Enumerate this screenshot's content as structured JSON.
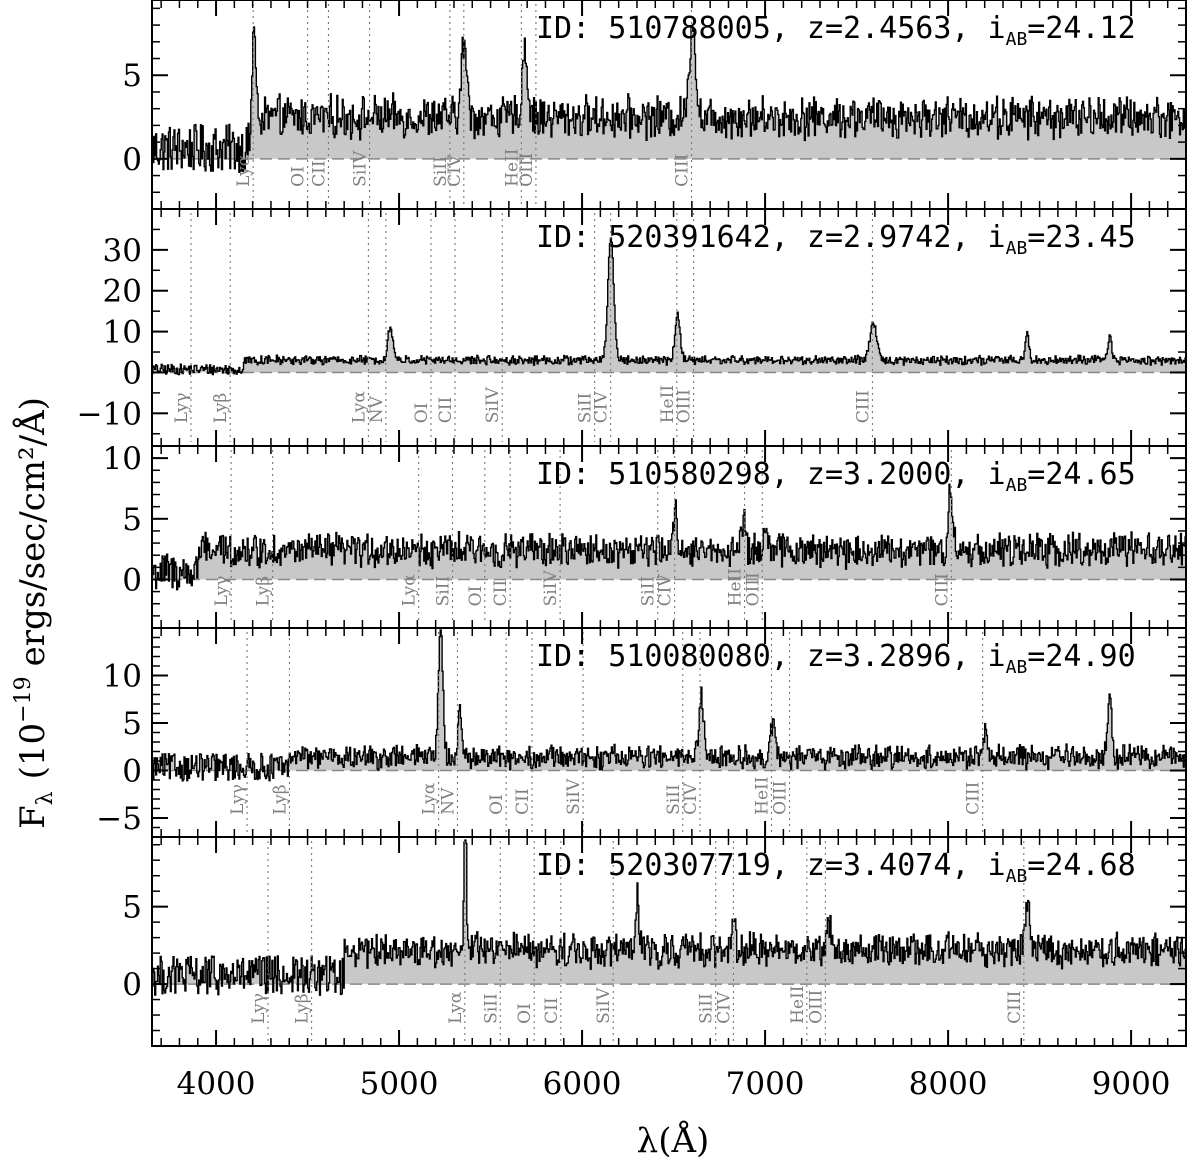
{
  "chart_data": {
    "type": "line",
    "xlabel": "λ(Å)",
    "ylabel_prefix": "F",
    "ylabel_sub": "λ",
    "ylabel_main": "(10",
    "ylabel_exp": "−19",
    "ylabel_units": "ergs/sec/cm²/Å)",
    "xlim": [
      3650,
      9300
    ],
    "x_ticks": [
      4000,
      5000,
      6000,
      7000,
      8000,
      9000
    ],
    "x_tick_labels": [
      "4000",
      "5000",
      "6000",
      "7000",
      "8000",
      "9000"
    ],
    "grid": false,
    "fill_color": "#c8c8c8",
    "line_color": "#000000",
    "label_color": "#808080",
    "panels": [
      {
        "id_label": "ID: 510788005, z=2.4563, i",
        "mag_sub": "AB",
        "mag_value": "=24.12",
        "redshift": 2.4563,
        "ylim": [
          -3.0,
          9.5
        ],
        "y_ticks": [
          0,
          5
        ],
        "y_tick_labels": [
          "0",
          "5"
        ],
        "baseline": 2.5,
        "noise": 0.9,
        "blue_noise_end": 4200,
        "emission": [
          [
            4203,
            5.5,
            10
          ],
          [
            5353,
            4.5,
            14
          ],
          [
            5685,
            4.2,
            14
          ],
          [
            6601,
            6.0,
            16
          ]
        ],
        "lines": [
          {
            "label": "Lyα",
            "rest": 1216
          },
          {
            "label": "OI",
            "rest": 1302
          },
          {
            "label": "CII",
            "rest": 1335
          },
          {
            "label": "SiIV",
            "rest": 1400
          },
          {
            "label": "SiII",
            "rest": 1527
          },
          {
            "label": "CIV",
            "rest": 1549
          },
          {
            "label": "HeII",
            "rest": 1640
          },
          {
            "label": "OIII",
            "rest": 1663
          },
          {
            "label": "CIII",
            "rest": 1909
          }
        ]
      },
      {
        "id_label": "ID: 520391642, z=2.9742, i",
        "mag_sub": "AB",
        "mag_value": "=23.45",
        "redshift": 2.9742,
        "ylim": [
          -18.0,
          40.0
        ],
        "y_ticks": [
          -10,
          0,
          10,
          20,
          30
        ],
        "y_tick_labels": [
          "−10",
          "0",
          "10",
          "20",
          "30"
        ],
        "baseline": 3.0,
        "noise": 0.8,
        "blue_noise_end": 4150,
        "emission": [
          [
            4950,
            8,
            14
          ],
          [
            6155,
            30,
            16
          ],
          [
            6520,
            11,
            14
          ],
          [
            7590,
            9,
            18
          ],
          [
            8430,
            6,
            10
          ],
          [
            8880,
            6,
            10
          ]
        ],
        "lines": [
          {
            "label": "Lyγ",
            "rest": 972
          },
          {
            "label": "Lyβ",
            "rest": 1026
          },
          {
            "label": "Lyα",
            "rest": 1216
          },
          {
            "label": "NV",
            "rest": 1240
          },
          {
            "label": "OI",
            "rest": 1302
          },
          {
            "label": "CII",
            "rest": 1335
          },
          {
            "label": "SiIV",
            "rest": 1400
          },
          {
            "label": "SiII",
            "rest": 1527
          },
          {
            "label": "CIV",
            "rest": 1549
          },
          {
            "label": "HeII",
            "rest": 1640
          },
          {
            "label": "OIII",
            "rest": 1663
          },
          {
            "label": "CIII",
            "rest": 1909
          }
        ]
      },
      {
        "id_label": "ID: 510580298, z=3.2000, i",
        "mag_sub": "AB",
        "mag_value": "=24.65",
        "redshift": 3.2,
        "ylim": [
          -4.0,
          11.0
        ],
        "y_ticks": [
          0,
          5,
          10
        ],
        "y_tick_labels": [
          "0",
          "5",
          "10"
        ],
        "baseline": 2.4,
        "noise": 1.0,
        "blue_noise_end": 3900,
        "emission": [
          [
            6510,
            3.2,
            10
          ],
          [
            6880,
            2.5,
            12
          ],
          [
            7000,
            2.5,
            10
          ],
          [
            8010,
            5.0,
            12
          ]
        ],
        "lines": [
          {
            "label": "Lyγ",
            "rest": 972
          },
          {
            "label": "Lyβ",
            "rest": 1026
          },
          {
            "label": "Lyα",
            "rest": 1216
          },
          {
            "label": "SiII",
            "rest": 1260
          },
          {
            "label": "OI",
            "rest": 1302
          },
          {
            "label": "CII",
            "rest": 1335
          },
          {
            "label": "SiIV",
            "rest": 1400
          },
          {
            "label": "SiII",
            "rest": 1527
          },
          {
            "label": "CIV",
            "rest": 1549
          },
          {
            "label": "HeII",
            "rest": 1640
          },
          {
            "label": "OIII",
            "rest": 1663
          },
          {
            "label": "CIII",
            "rest": 1909
          }
        ]
      },
      {
        "id_label": "ID: 510080080, z=3.2896, i",
        "mag_sub": "AB",
        "mag_value": "=24.90",
        "redshift": 3.2896,
        "ylim": [
          -7.0,
          15.0
        ],
        "y_ticks": [
          -5,
          0,
          5,
          10
        ],
        "y_tick_labels": [
          "−5",
          "0",
          "5",
          "10"
        ],
        "baseline": 1.4,
        "noise": 0.9,
        "blue_noise_end": 4400,
        "emission": [
          [
            5225,
            14,
            12
          ],
          [
            5330,
            5,
            10
          ],
          [
            6650,
            6,
            14
          ],
          [
            7040,
            3.5,
            12
          ],
          [
            8200,
            2.5,
            10
          ],
          [
            8880,
            7,
            10
          ]
        ],
        "lines": [
          {
            "label": "Lyγ",
            "rest": 972
          },
          {
            "label": "Lyβ",
            "rest": 1026
          },
          {
            "label": "Lyα",
            "rest": 1216
          },
          {
            "label": "NV",
            "rest": 1240
          },
          {
            "label": "OI",
            "rest": 1302
          },
          {
            "label": "CII",
            "rest": 1335
          },
          {
            "label": "SiIV",
            "rest": 1400
          },
          {
            "label": "SiII",
            "rest": 1527
          },
          {
            "label": "CIV",
            "rest": 1549
          },
          {
            "label": "HeII",
            "rest": 1640
          },
          {
            "label": "OIII",
            "rest": 1663
          },
          {
            "label": "CIII",
            "rest": 1909
          }
        ]
      },
      {
        "id_label": "ID: 520307719, z=3.4074, i",
        "mag_sub": "AB",
        "mag_value": "=24.68",
        "redshift": 3.4074,
        "ylim": [
          -4.0,
          9.5
        ],
        "y_ticks": [
          0,
          5
        ],
        "y_tick_labels": [
          "0",
          "5"
        ],
        "baseline": 2.2,
        "noise": 0.8,
        "blue_noise_end": 4700,
        "emission": [
          [
            5360,
            9.5,
            6
          ],
          [
            6300,
            3.5,
            8
          ],
          [
            6830,
            2.5,
            8
          ],
          [
            7350,
            2.0,
            10
          ],
          [
            8430,
            3.5,
            12
          ]
        ],
        "lines": [
          {
            "label": "Lyγ",
            "rest": 972
          },
          {
            "label": "Lyβ",
            "rest": 1026
          },
          {
            "label": "Lyα",
            "rest": 1216
          },
          {
            "label": "SiII",
            "rest": 1260
          },
          {
            "label": "OI",
            "rest": 1302
          },
          {
            "label": "CII",
            "rest": 1335
          },
          {
            "label": "SiIV",
            "rest": 1400
          },
          {
            "label": "SiII",
            "rest": 1527
          },
          {
            "label": "CIV",
            "rest": 1549
          },
          {
            "label": "HeII",
            "rest": 1640
          },
          {
            "label": "OIII",
            "rest": 1663
          },
          {
            "label": "CIII",
            "rest": 1909
          }
        ]
      }
    ]
  }
}
